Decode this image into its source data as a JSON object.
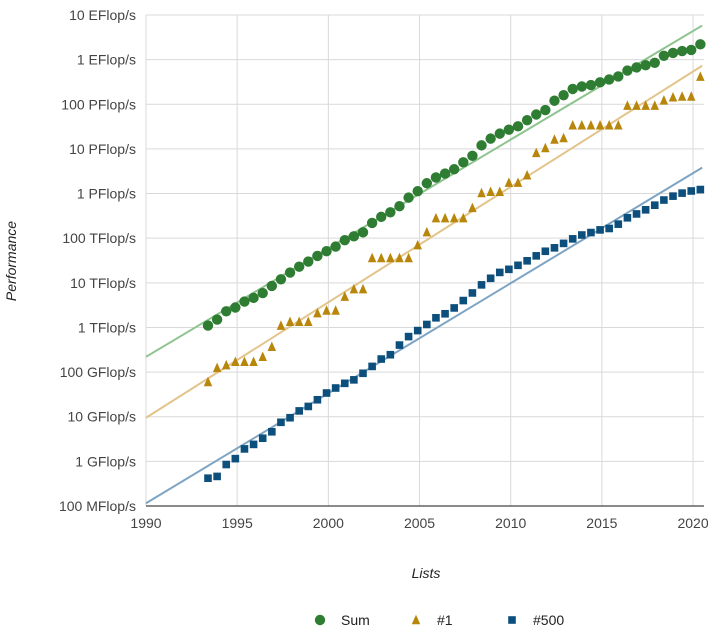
{
  "chart_data": {
    "type": "scatter",
    "title": "",
    "xlabel": "Lists",
    "ylabel": "Performance",
    "y_scale": "log",
    "xlim": [
      1990,
      2020.6
    ],
    "ylim_gflops": [
      0.1,
      10000000000
    ],
    "x_ticks": [
      1990,
      1995,
      2000,
      2005,
      2010,
      2015,
      2020
    ],
    "y_ticks": [
      {
        "gflops": 0.1,
        "label": "100 MFlop/s"
      },
      {
        "gflops": 1,
        "label": "1 GFlop/s"
      },
      {
        "gflops": 10,
        "label": "10 GFlop/s"
      },
      {
        "gflops": 100,
        "label": "100 GFlop/s"
      },
      {
        "gflops": 1000,
        "label": "1 TFlop/s"
      },
      {
        "gflops": 10000,
        "label": "10 TFlop/s"
      },
      {
        "gflops": 100000,
        "label": "100 TFlop/s"
      },
      {
        "gflops": 1000000,
        "label": "1 PFlop/s"
      },
      {
        "gflops": 10000000,
        "label": "10 PFlop/s"
      },
      {
        "gflops": 100000000,
        "label": "100 PFlop/s"
      },
      {
        "gflops": 1000000000,
        "label": "1 EFlop/s"
      },
      {
        "gflops": 10000000000,
        "label": "10 EFlop/s"
      }
    ],
    "grid": true,
    "legend_position": "bottom",
    "series": [
      {
        "name": "Sum",
        "marker": "circle",
        "color": "#2e7d32",
        "trend_color": "#8dc38d",
        "trend_gflops": [
          [
            1990,
            220
          ],
          [
            2020.5,
            5800000000
          ]
        ],
        "points": [
          [
            1993.4,
            1100
          ],
          [
            1993.9,
            1500
          ],
          [
            1994.4,
            2300
          ],
          [
            1994.9,
            2800
          ],
          [
            1995.4,
            3800
          ],
          [
            1995.9,
            4600
          ],
          [
            1996.4,
            5900
          ],
          [
            1996.9,
            8500
          ],
          [
            1997.4,
            12000
          ],
          [
            1997.9,
            17000
          ],
          [
            1998.4,
            23000
          ],
          [
            1998.9,
            30000
          ],
          [
            1999.4,
            40000
          ],
          [
            1999.9,
            51000
          ],
          [
            2000.4,
            65000
          ],
          [
            2000.9,
            90000
          ],
          [
            2001.4,
            110000
          ],
          [
            2001.9,
            135000
          ],
          [
            2002.4,
            220000
          ],
          [
            2002.9,
            300000
          ],
          [
            2003.4,
            380000
          ],
          [
            2003.9,
            520000
          ],
          [
            2004.4,
            810000
          ],
          [
            2004.9,
            1130000
          ],
          [
            2005.4,
            1700000
          ],
          [
            2005.9,
            2300000
          ],
          [
            2006.4,
            2800000
          ],
          [
            2006.9,
            3500000
          ],
          [
            2007.4,
            5000000
          ],
          [
            2007.9,
            7000000
          ],
          [
            2008.4,
            12000000
          ],
          [
            2008.9,
            17000000
          ],
          [
            2009.4,
            22000000
          ],
          [
            2009.9,
            27000000
          ],
          [
            2010.4,
            32000000
          ],
          [
            2010.9,
            44000000
          ],
          [
            2011.4,
            59000000
          ],
          [
            2011.9,
            74000000
          ],
          [
            2012.4,
            120000000
          ],
          [
            2012.9,
            160000000
          ],
          [
            2013.4,
            220000000
          ],
          [
            2013.9,
            250000000
          ],
          [
            2014.4,
            270000000
          ],
          [
            2014.9,
            310000000
          ],
          [
            2015.4,
            360000000
          ],
          [
            2015.9,
            420000000
          ],
          [
            2016.4,
            570000000
          ],
          [
            2016.9,
            670000000
          ],
          [
            2017.4,
            750000000
          ],
          [
            2017.9,
            850000000
          ],
          [
            2018.4,
            1220000000
          ],
          [
            2018.9,
            1410000000
          ],
          [
            2019.4,
            1560000000
          ],
          [
            2019.9,
            1650000000
          ],
          [
            2020.4,
            2200000000
          ]
        ]
      },
      {
        "name": "#1",
        "marker": "triangle",
        "color": "#b8860b",
        "trend_color": "#e2c48b",
        "trend_gflops": [
          [
            1990,
            9.5
          ],
          [
            2020.5,
            730000000
          ]
        ],
        "points": [
          [
            1993.4,
            60
          ],
          [
            1993.9,
            124
          ],
          [
            1994.4,
            143
          ],
          [
            1994.9,
            170
          ],
          [
            1995.4,
            170
          ],
          [
            1995.9,
            170
          ],
          [
            1996.4,
            220
          ],
          [
            1996.9,
            370
          ],
          [
            1997.4,
            1100
          ],
          [
            1997.9,
            1340
          ],
          [
            1998.4,
            1340
          ],
          [
            1998.9,
            1340
          ],
          [
            1999.4,
            2100
          ],
          [
            1999.9,
            2400
          ],
          [
            2000.4,
            2400
          ],
          [
            2000.9,
            4900
          ],
          [
            2001.4,
            7200
          ],
          [
            2001.9,
            7200
          ],
          [
            2002.4,
            36000
          ],
          [
            2002.9,
            36000
          ],
          [
            2003.4,
            36000
          ],
          [
            2003.9,
            36000
          ],
          [
            2004.4,
            36000
          ],
          [
            2004.9,
            70000
          ],
          [
            2005.4,
            137000
          ],
          [
            2005.9,
            281000
          ],
          [
            2006.4,
            281000
          ],
          [
            2006.9,
            281000
          ],
          [
            2007.4,
            281000
          ],
          [
            2007.9,
            478000
          ],
          [
            2008.4,
            1030000
          ],
          [
            2008.9,
            1100000
          ],
          [
            2009.4,
            1100000
          ],
          [
            2009.9,
            1760000
          ],
          [
            2010.4,
            1760000
          ],
          [
            2010.9,
            2570000
          ],
          [
            2011.4,
            8160000
          ],
          [
            2011.9,
            10500000
          ],
          [
            2012.4,
            16300000
          ],
          [
            2012.9,
            17600000
          ],
          [
            2013.4,
            33900000
          ],
          [
            2013.9,
            33900000
          ],
          [
            2014.4,
            33900000
          ],
          [
            2014.9,
            33900000
          ],
          [
            2015.4,
            33900000
          ],
          [
            2015.9,
            33900000
          ],
          [
            2016.4,
            93000000
          ],
          [
            2016.9,
            93000000
          ],
          [
            2017.4,
            93000000
          ],
          [
            2017.9,
            93000000
          ],
          [
            2018.4,
            122000000
          ],
          [
            2018.9,
            144000000
          ],
          [
            2019.4,
            149000000
          ],
          [
            2019.9,
            149000000
          ],
          [
            2020.4,
            415000000
          ]
        ]
      },
      {
        "name": "#500",
        "marker": "square",
        "color": "#0d4f7c",
        "trend_color": "#7ea4c4",
        "trend_gflops": [
          [
            1990,
            0.115
          ],
          [
            2020.5,
            3800000
          ]
        ],
        "points": [
          [
            1993.4,
            0.42
          ],
          [
            1993.9,
            0.46
          ],
          [
            1994.4,
            0.85
          ],
          [
            1994.9,
            1.15
          ],
          [
            1995.4,
            1.9
          ],
          [
            1995.9,
            2.4
          ],
          [
            1996.4,
            3.3
          ],
          [
            1996.9,
            4.6
          ],
          [
            1997.4,
            7.5
          ],
          [
            1997.9,
            9.5
          ],
          [
            1998.4,
            13.5
          ],
          [
            1998.9,
            17
          ],
          [
            1999.4,
            24
          ],
          [
            1999.9,
            34
          ],
          [
            2000.4,
            44
          ],
          [
            2000.9,
            56
          ],
          [
            2001.4,
            67
          ],
          [
            2001.9,
            94
          ],
          [
            2002.4,
            134
          ],
          [
            2002.9,
            196
          ],
          [
            2003.4,
            245
          ],
          [
            2003.9,
            403
          ],
          [
            2004.4,
            624
          ],
          [
            2004.9,
            851
          ],
          [
            2005.4,
            1166
          ],
          [
            2005.9,
            1646
          ],
          [
            2006.4,
            2026
          ],
          [
            2006.9,
            2737
          ],
          [
            2007.4,
            4005
          ],
          [
            2007.9,
            5929
          ],
          [
            2008.4,
            9000
          ],
          [
            2008.9,
            12640
          ],
          [
            2009.4,
            17100
          ],
          [
            2009.9,
            20050
          ],
          [
            2010.4,
            24670
          ],
          [
            2010.9,
            31120
          ],
          [
            2011.4,
            40190
          ],
          [
            2011.9,
            50940
          ],
          [
            2012.4,
            60820
          ],
          [
            2012.9,
            76500
          ],
          [
            2013.4,
            96620
          ],
          [
            2013.9,
            117830
          ],
          [
            2014.4,
            133700
          ],
          [
            2014.9,
            153400
          ],
          [
            2015.4,
            164900
          ],
          [
            2015.9,
            206300
          ],
          [
            2016.4,
            286100
          ],
          [
            2016.9,
            349300
          ],
          [
            2017.4,
            432200
          ],
          [
            2017.9,
            548300
          ],
          [
            2018.4,
            715600
          ],
          [
            2018.9,
            874800
          ],
          [
            2019.4,
            1022000
          ],
          [
            2019.9,
            1142000
          ],
          [
            2020.4,
            1230000
          ]
        ]
      }
    ]
  }
}
